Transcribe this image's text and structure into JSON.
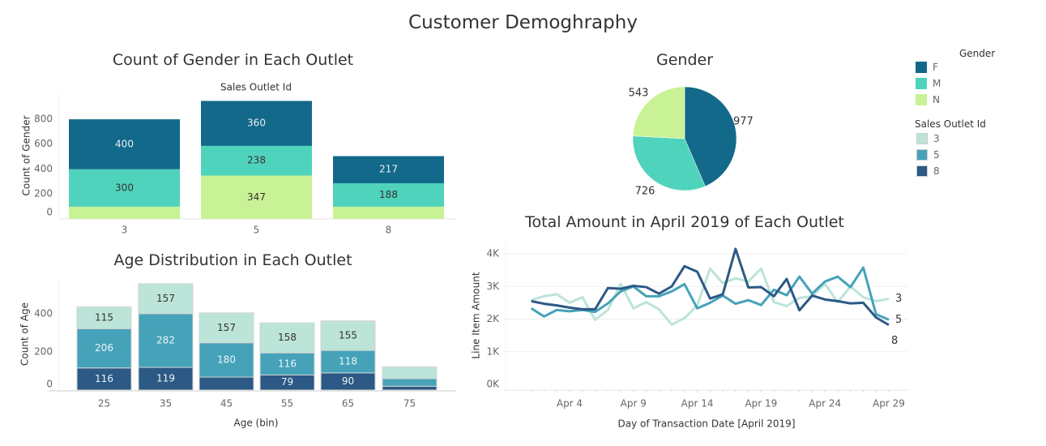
{
  "dashboard_title": "Customer Demoghraphy",
  "colors": {
    "gender": {
      "F": "#13698a",
      "M": "#50d3bc",
      "N": "#c9f296"
    },
    "outlet": {
      "3": "#bce4d8",
      "5": "#45a2b9",
      "8": "#2c5985"
    }
  },
  "legend": {
    "gender_title": "Gender",
    "gender_items": [
      "F",
      "M",
      "N"
    ],
    "outlet_title": "Sales Outlet Id",
    "outlet_items": [
      "3",
      "5",
      "8"
    ]
  },
  "chart_data": [
    {
      "type": "bar",
      "stacked": true,
      "title": "Count of Gender in Each Outlet",
      "column_header": "Sales Outlet Id",
      "ylabel": "Count of Gender",
      "categories": [
        "3",
        "5",
        "8"
      ],
      "yticks": [
        0,
        200,
        400,
        600,
        800
      ],
      "series": [
        {
          "name": "N",
          "values": [
            98,
            347,
            98
          ],
          "labels": [
            "",
            "347",
            ""
          ]
        },
        {
          "name": "M",
          "values": [
            300,
            238,
            188
          ],
          "labels": [
            "300",
            "238",
            "188"
          ]
        },
        {
          "name": "F",
          "values": [
            400,
            360,
            217
          ],
          "labels": [
            "400",
            "360",
            "217"
          ]
        }
      ]
    },
    {
      "type": "pie",
      "title": "Gender",
      "slices": [
        {
          "name": "F",
          "value": 977,
          "label": "977"
        },
        {
          "name": "M",
          "value": 726,
          "label": "726"
        },
        {
          "name": "N",
          "value": 543,
          "label": "543"
        }
      ]
    },
    {
      "type": "bar",
      "stacked": true,
      "title": "Age Distribution in Each Outlet",
      "xlabel": "Age (bin)",
      "ylabel": "Count of Age",
      "categories": [
        "25",
        "35",
        "45",
        "55",
        "65",
        "75"
      ],
      "yticks": [
        0,
        200,
        400
      ],
      "series": [
        {
          "name": "8",
          "values": [
            116,
            119,
            68,
            79,
            90,
            20
          ],
          "labels": [
            "116",
            "119",
            "",
            "79",
            "90",
            ""
          ]
        },
        {
          "name": "5",
          "values": [
            206,
            282,
            180,
            116,
            118,
            40
          ],
          "labels": [
            "206",
            "282",
            "180",
            "116",
            "118",
            ""
          ]
        },
        {
          "name": "3",
          "values": [
            115,
            157,
            157,
            158,
            155,
            62
          ],
          "labels": [
            "115",
            "157",
            "157",
            "158",
            "155",
            ""
          ]
        }
      ]
    },
    {
      "type": "line",
      "title": "Total Amount in April 2019 of Each Outlet",
      "xlabel": "Day of Transaction Date [April 2019]",
      "ylabel": "Line Item Amount",
      "x": [
        "2019-04-01",
        "2019-04-02",
        "2019-04-03",
        "2019-04-04",
        "2019-04-05",
        "2019-04-06",
        "2019-04-07",
        "2019-04-08",
        "2019-04-09",
        "2019-04-10",
        "2019-04-11",
        "2019-04-12",
        "2019-04-13",
        "2019-04-14",
        "2019-04-15",
        "2019-04-16",
        "2019-04-17",
        "2019-04-18",
        "2019-04-19",
        "2019-04-20",
        "2019-04-21",
        "2019-04-22",
        "2019-04-23",
        "2019-04-24",
        "2019-04-25",
        "2019-04-26",
        "2019-04-27",
        "2019-04-28",
        "2019-04-29"
      ],
      "xticks": [
        "Apr 4",
        "Apr 9",
        "Apr 14",
        "Apr 19",
        "Apr 24",
        "Apr 29"
      ],
      "yticks": [
        "0K",
        "1K",
        "2K",
        "3K",
        "4K"
      ],
      "ylim": [
        0,
        4300
      ],
      "series": [
        {
          "name": "3",
          "values": [
            2580,
            2700,
            2760,
            2500,
            2670,
            1980,
            2280,
            3080,
            2330,
            2520,
            2300,
            1830,
            2030,
            2420,
            3550,
            3100,
            3250,
            3150,
            3550,
            2520,
            2400,
            2650,
            2700,
            3080,
            2520,
            3000,
            2670,
            2550,
            2620
          ]
        },
        {
          "name": "5",
          "values": [
            2330,
            2080,
            2280,
            2240,
            2280,
            2220,
            2480,
            2850,
            3000,
            2700,
            2700,
            2850,
            3070,
            2330,
            2500,
            2720,
            2470,
            2580,
            2430,
            2900,
            2730,
            3300,
            2780,
            3150,
            3300,
            2980,
            3580,
            2150,
            1980
          ]
        },
        {
          "name": "8",
          "values": [
            2550,
            2470,
            2420,
            2350,
            2300,
            2300,
            2950,
            2930,
            3020,
            2980,
            2780,
            3000,
            3620,
            3450,
            2630,
            2760,
            4150,
            2970,
            2980,
            2700,
            3230,
            2270,
            2720,
            2600,
            2550,
            2480,
            2500,
            2050,
            1820
          ]
        }
      ]
    }
  ]
}
